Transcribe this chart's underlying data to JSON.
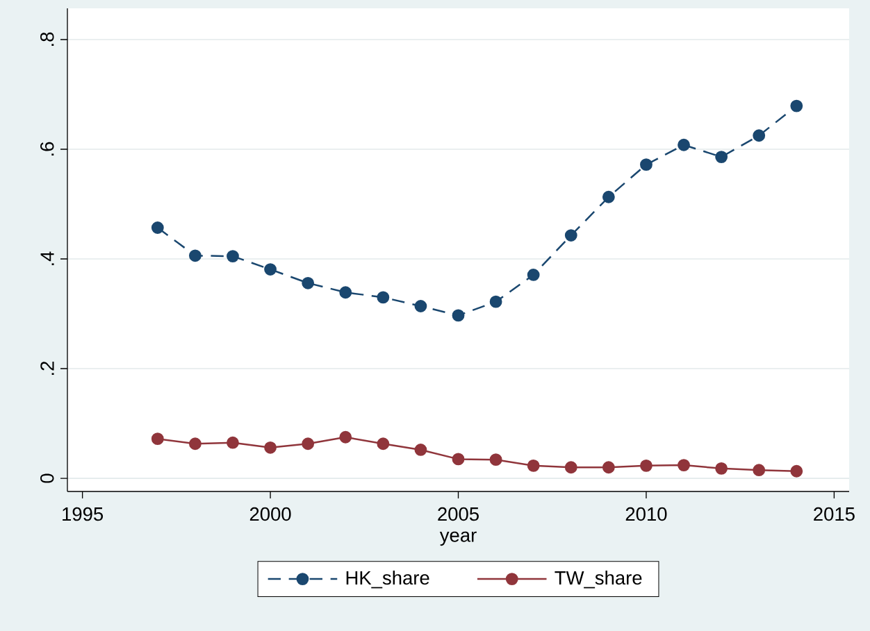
{
  "chart_data": {
    "type": "line",
    "xlabel": "year",
    "x": [
      1997,
      1998,
      1999,
      2000,
      2001,
      2002,
      2003,
      2004,
      2005,
      2006,
      2007,
      2008,
      2009,
      2010,
      2011,
      2012,
      2013,
      2014
    ],
    "series": [
      {
        "name": "HK_share",
        "color": "#1a476f",
        "line_style": "dashed",
        "values": [
          0.457,
          0.406,
          0.405,
          0.381,
          0.356,
          0.339,
          0.33,
          0.314,
          0.297,
          0.322,
          0.371,
          0.443,
          0.513,
          0.572,
          0.608,
          0.586,
          0.625,
          0.679
        ]
      },
      {
        "name": "TW_share",
        "color": "#90353b",
        "line_style": "solid",
        "values": [
          0.072,
          0.063,
          0.065,
          0.056,
          0.063,
          0.075,
          0.063,
          0.052,
          0.035,
          0.034,
          0.023,
          0.02,
          0.02,
          0.023,
          0.024,
          0.018,
          0.015,
          0.013
        ]
      }
    ],
    "xlim": [
      1994.6,
      2015.4
    ],
    "xticks": [
      1995,
      2000,
      2005,
      2010,
      2015
    ],
    "ylim": [
      -0.024,
      0.857
    ],
    "yticks": [
      0,
      {
        "value": 0.2,
        "label": ".2"
      },
      {
        "value": 0.4,
        "label": ".4"
      },
      {
        "value": 0.6,
        "label": ".6"
      },
      {
        "value": 0.8,
        "label": ".8"
      }
    ],
    "grid": "y",
    "legend": "bottom",
    "marker": "circle"
  }
}
